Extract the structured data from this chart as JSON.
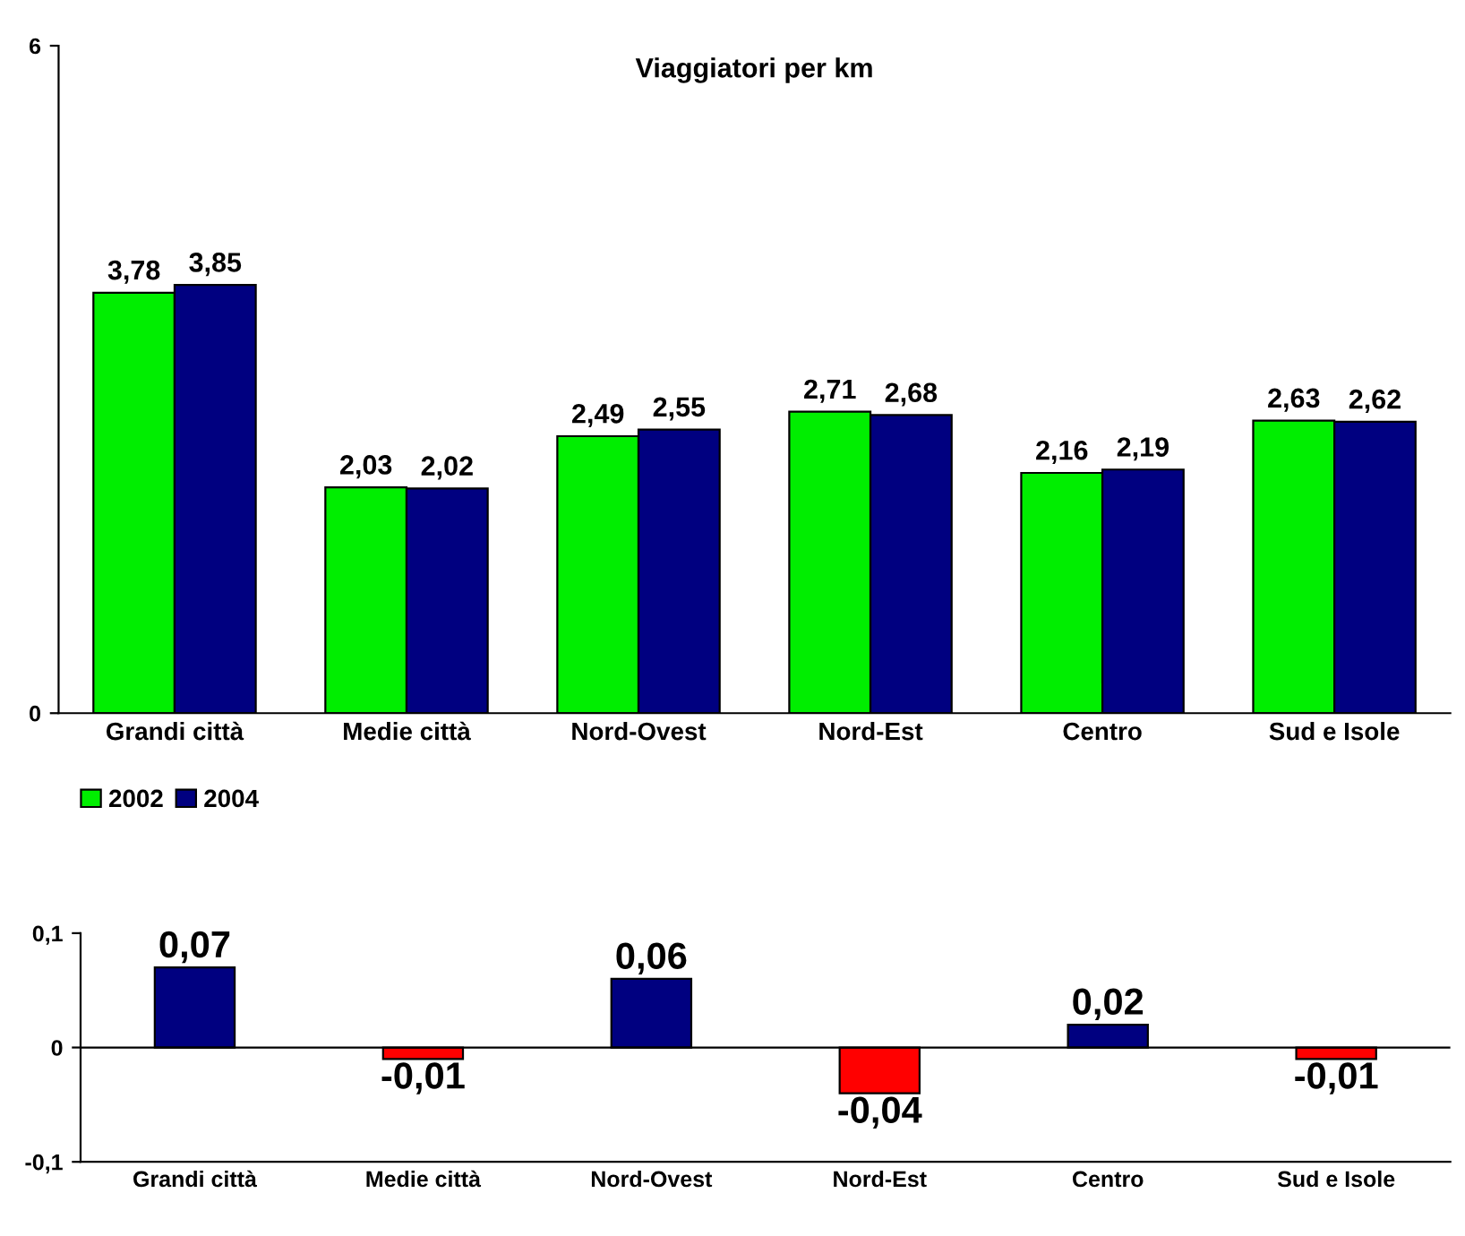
{
  "chart_data": [
    {
      "type": "bar",
      "title": "Viaggiatori per km",
      "categories": [
        "Grandi città",
        "Medie città",
        "Nord-Ovest",
        "Nord-Est",
        "Centro",
        "Sud e Isole"
      ],
      "series": [
        {
          "name": "2002",
          "color": "#00ee00",
          "values": [
            3.78,
            2.03,
            2.49,
            2.71,
            2.16,
            2.63
          ],
          "value_labels": [
            "3,78",
            "2,03",
            "2,49",
            "2,71",
            "2,16",
            "2,63"
          ]
        },
        {
          "name": "2004",
          "color": "#000080",
          "values": [
            3.85,
            2.02,
            2.55,
            2.68,
            2.19,
            2.62
          ],
          "value_labels": [
            "3,85",
            "2,02",
            "2,55",
            "2,68",
            "2,19",
            "2,62"
          ]
        }
      ],
      "ylim": [
        0,
        6
      ],
      "yticks": [
        0,
        6
      ],
      "grid": false,
      "legend": "bottom"
    },
    {
      "type": "bar",
      "categories": [
        "Grandi città",
        "Medie città",
        "Nord-Ovest",
        "Nord-Est",
        "Centro",
        "Sud e Isole"
      ],
      "values": [
        0.07,
        -0.01,
        0.06,
        -0.04,
        0.02,
        -0.01
      ],
      "colors": [
        "#000080",
        "#ff0000",
        "#000080",
        "#ff0000",
        "#000080",
        "#ff0000"
      ],
      "value_labels": [
        "0,07",
        "-0,01",
        "0,06",
        "-0,04",
        "0,02",
        "-0,01"
      ],
      "ylim": [
        -0.1,
        0.1
      ],
      "yticks": [
        {
          "value": -0.1,
          "label": "-0,1"
        },
        {
          "value": 0,
          "label": "0"
        },
        {
          "value": 0.1,
          "label": "0,1"
        }
      ],
      "grid": false,
      "ref_lines": [
        {
          "axis": "y",
          "value": 0,
          "color": "#000000"
        }
      ]
    }
  ]
}
